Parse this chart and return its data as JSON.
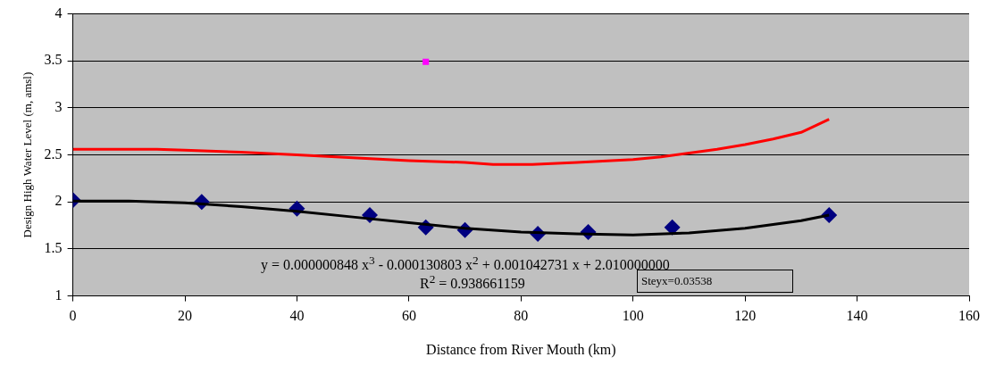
{
  "chart_data": {
    "type": "scatter",
    "xlabel": "Distance from River Mouth (km)",
    "ylabel": "Design High Water Level (m, amsl)",
    "xlim": [
      0,
      160
    ],
    "xticks": [
      0,
      20,
      40,
      60,
      80,
      100,
      120,
      140,
      160
    ],
    "ylim": [
      1,
      4
    ],
    "yticks": [
      {
        "value": 1,
        "label": "1"
      },
      1.5,
      {
        "value": 2,
        "label": "2"
      },
      2.5,
      {
        "value": 3,
        "label": "3"
      },
      3.5,
      {
        "value": 4,
        "label": "4"
      }
    ],
    "grid": "y",
    "legend": false,
    "series": [
      {
        "type": "line",
        "color": "#ff0000",
        "marker": "none",
        "x": [
          0,
          15,
          20,
          30,
          40,
          50,
          60,
          70,
          75,
          82,
          90,
          100,
          105,
          110,
          115,
          120,
          125,
          130,
          135
        ],
        "values": [
          2.56,
          2.56,
          2.55,
          2.53,
          2.5,
          2.47,
          2.44,
          2.42,
          2.4,
          2.4,
          2.42,
          2.45,
          2.48,
          2.52,
          2.56,
          2.61,
          2.67,
          2.74,
          2.88
        ]
      },
      {
        "type": "line",
        "color": "#000000",
        "marker": "none",
        "x": [
          0,
          10,
          20,
          30,
          40,
          50,
          60,
          70,
          80,
          90,
          100,
          110,
          120,
          130,
          135
        ],
        "values": [
          2.01,
          2.01,
          1.99,
          1.95,
          1.9,
          1.84,
          1.78,
          1.72,
          1.68,
          1.66,
          1.65,
          1.67,
          1.72,
          1.8,
          1.86
        ]
      },
      {
        "type": "scatter",
        "color": "#000080",
        "marker": "diamond",
        "x": [
          0,
          23,
          40,
          53,
          63,
          70,
          83,
          92,
          107,
          135
        ],
        "values": [
          2.02,
          2.0,
          1.93,
          1.86,
          1.73,
          1.7,
          1.66,
          1.68,
          1.73,
          1.86
        ]
      },
      {
        "type": "scatter",
        "color": "#ff00ff",
        "marker": "square",
        "x": [
          63
        ],
        "values": [
          3.49
        ]
      }
    ],
    "annotations": [
      "y = 0.000000848 x$^{3}$ - 0.000130803 x$^{2}$ + 0.001042731 x + 2.010000000",
      "R$^{2}$ = 0.938661159",
      "Steyx=0.03538"
    ]
  }
}
